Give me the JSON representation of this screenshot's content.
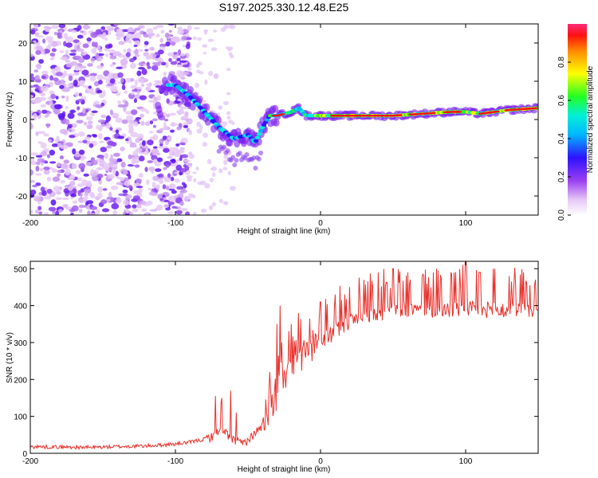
{
  "chart_data": [
    {
      "type": "heatmap",
      "title": "S197.2025.330.12.48.E25",
      "xlabel": "Height of straight line (km)",
      "ylabel": "Frequency (Hz)",
      "xlim": [
        -200,
        150
      ],
      "ylim": [
        -25,
        25
      ],
      "xticks": [
        -200,
        -100,
        0,
        100
      ],
      "yticks": [
        -20,
        -10,
        0,
        10,
        20
      ],
      "colorbar": {
        "label": "Normalized spectral amplitude",
        "range": [
          0,
          1
        ],
        "ticks": [
          "0.0",
          "0.2",
          "0.4",
          "0.6",
          "0.8"
        ]
      },
      "ridge": {
        "x": [
          -110,
          -100,
          -90,
          -80,
          -70,
          -60,
          -50,
          -45,
          -40,
          -35,
          -30,
          -20,
          -15,
          -10,
          0,
          10,
          30,
          50,
          70,
          90,
          100,
          110,
          130,
          150
        ],
        "y": [
          9,
          9,
          6,
          2,
          -2,
          -5,
          -4,
          -6,
          -2,
          1,
          1,
          2,
          3,
          1,
          1,
          1,
          1,
          1,
          1.5,
          2,
          2,
          1.5,
          2.5,
          3
        ]
      }
    },
    {
      "type": "line",
      "xlabel": "Height of straight line (km)",
      "ylabel": "SNR (10 * v/v)",
      "xlim": [
        -200,
        150
      ],
      "ylim": [
        0,
        520
      ],
      "xticks": [
        -200,
        -100,
        0,
        100
      ],
      "yticks": [
        0,
        100,
        200,
        300,
        400,
        500
      ],
      "color": "#e8302b",
      "series": [
        {
          "name": "SNR",
          "x": [
            -200,
            -180,
            -160,
            -140,
            -120,
            -100,
            -90,
            -80,
            -75,
            -70,
            -65,
            -60,
            -55,
            -50,
            -45,
            -40,
            -35,
            -30,
            -25,
            -20,
            -15,
            -10,
            -5,
            0,
            5,
            10,
            15,
            20,
            25,
            30,
            35,
            40,
            50,
            60,
            70,
            80,
            90,
            100,
            110,
            120,
            130,
            140,
            150
          ],
          "values": [
            18,
            17,
            16,
            18,
            20,
            25,
            30,
            38,
            45,
            60,
            55,
            35,
            25,
            35,
            55,
            75,
            110,
            150,
            200,
            230,
            250,
            270,
            285,
            300,
            315,
            330,
            345,
            355,
            365,
            370,
            375,
            380,
            385,
            388,
            386,
            390,
            388,
            392,
            388,
            390,
            385,
            388,
            385
          ],
          "peaks": {
            "x": [
              -68,
              -62,
              -58,
              -35,
              -30,
              -28,
              -27,
              -20,
              -15,
              0,
              10,
              20,
              30,
              40,
              50,
              60,
              70,
              80,
              90,
              98,
              100,
              110,
              120,
              130,
              140,
              148
            ],
            "values": [
              120,
              170,
              110,
              220,
              350,
              400,
              455,
              350,
              380,
              410,
              430,
              450,
              470,
              490,
              500,
              490,
              480,
              500,
              490,
              510,
              525,
              490,
              500,
              480,
              490,
              470
            ]
          }
        }
      ]
    }
  ]
}
